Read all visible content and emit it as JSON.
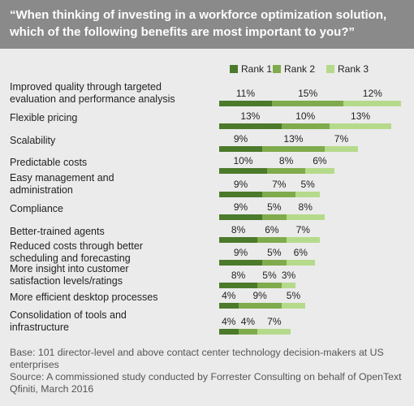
{
  "chart_data": {
    "type": "stacked-bar-horizontal",
    "title": "“When thinking of investing in a workforce optimization solution,\nwhich of the following benefits are most important to you?”",
    "categories": [
      "Improved quality through targeted\nevaluation and performance analysis",
      "Flexible pricing",
      "Scalability",
      "Predictable costs",
      "Easy management and\nadministration",
      "Compliance",
      "Better-trained agents",
      "Reduced costs through better\nscheduling and forecasting",
      "More insight into customer\nsatisfaction levels/ratings",
      "More efficient desktop processes",
      "Consolidation of tools and\ninfrastructure"
    ],
    "series": [
      {
        "name": "Rank 1",
        "color": "#4b7a2b",
        "values": [
          11,
          13,
          9,
          10,
          9,
          9,
          8,
          9,
          8,
          4,
          4
        ],
        "value_labels": [
          "11%",
          "13%",
          "9%",
          "10%",
          "9%",
          "9%",
          "8%",
          "9%",
          "8%",
          "4%",
          "4%"
        ]
      },
      {
        "name": "Rank 2",
        "color": "#7fab4c",
        "values": [
          15,
          10,
          13,
          8,
          7,
          5,
          6,
          5,
          5,
          9,
          4
        ],
        "value_labels": [
          "15%",
          "10%",
          "13%",
          "8%",
          "7%",
          "5%",
          "6%",
          "5%",
          "5%",
          "9%",
          "4%"
        ]
      },
      {
        "name": "Rank 3",
        "color": "#b6da8b",
        "values": [
          12,
          13,
          7,
          6,
          5,
          8,
          7,
          6,
          3,
          5,
          7
        ],
        "value_labels": [
          "12%",
          "13%",
          "7%",
          "6%",
          "5%",
          "8%",
          "7%",
          "6%",
          "3%",
          "5%",
          "7%"
        ]
      }
    ],
    "notes": [
      "Base: 101 director-level and above contact center technology decision-makers at US enterprises",
      "Source: A commissioned study conducted by Forrester Consulting on behalf of OpenText Qfiniti, March 2016"
    ]
  }
}
